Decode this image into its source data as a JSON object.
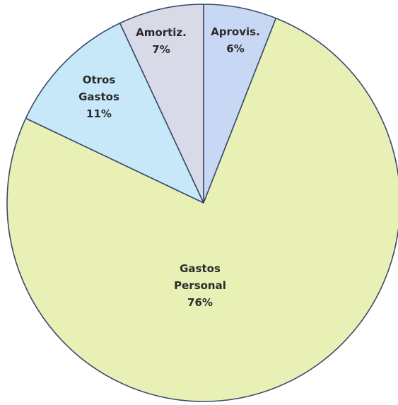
{
  "chart_data": {
    "type": "pie",
    "title": "",
    "legend": "none",
    "start": "12 o'clock, clockwise",
    "slices": [
      {
        "label_lines": [
          "Aprovis."
        ],
        "value": 6,
        "value_label": "6%",
        "color": "#c8d8f4"
      },
      {
        "label_lines": [
          "Gastos",
          "Personal"
        ],
        "value": 76,
        "value_label": "76%",
        "color": "#e8f0b6"
      },
      {
        "label_lines": [
          "Otros",
          "Gastos"
        ],
        "value": 11,
        "value_label": "11%",
        "color": "#c6e8f8"
      },
      {
        "label_lines": [
          "Amortiz."
        ],
        "value": 7,
        "value_label": "7%",
        "color": "#d8dae8"
      }
    ]
  }
}
